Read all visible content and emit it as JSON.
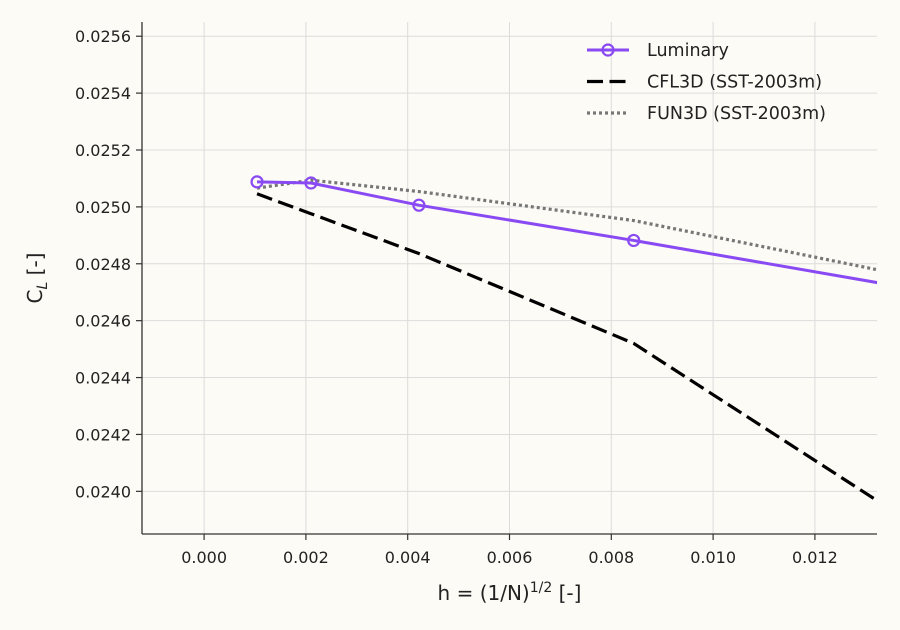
{
  "chart_data": {
    "type": "line",
    "title": "",
    "xlabel": {
      "base": "h = (1/N)",
      "sup": "1/2",
      "unit": " [-]"
    },
    "ylabel": {
      "base": "C",
      "sub": "L",
      "unit": " [-]"
    },
    "xlim": [
      -0.00122,
      0.01322
    ],
    "ylim": [
      0.02385,
      0.02565
    ],
    "xticks": [
      {
        "value": 0.0,
        "label": "0.000"
      },
      {
        "value": 0.002,
        "label": "0.002"
      },
      {
        "value": 0.004,
        "label": "0.004"
      },
      {
        "value": 0.006,
        "label": "0.006"
      },
      {
        "value": 0.008,
        "label": "0.008"
      },
      {
        "value": 0.01,
        "label": "0.010"
      },
      {
        "value": 0.012,
        "label": "0.012"
      }
    ],
    "yticks": [
      {
        "value": 0.024,
        "label": "0.0240"
      },
      {
        "value": 0.0242,
        "label": "0.0242"
      },
      {
        "value": 0.0244,
        "label": "0.0244"
      },
      {
        "value": 0.0246,
        "label": "0.0246"
      },
      {
        "value": 0.0248,
        "label": "0.0248"
      },
      {
        "value": 0.025,
        "label": "0.0250"
      },
      {
        "value": 0.0252,
        "label": "0.0252"
      },
      {
        "value": 0.0254,
        "label": "0.0254"
      },
      {
        "value": 0.0256,
        "label": "0.0256"
      }
    ],
    "grid": true,
    "legend_position": "top-right",
    "series": [
      {
        "name": "Luminary",
        "color": "#8a4af3",
        "style": "solid",
        "marker": "circle-open",
        "points": [
          [
            0.00104,
            0.025088
          ],
          [
            0.0021,
            0.025084
          ],
          [
            0.00422,
            0.025006
          ],
          [
            0.00844,
            0.024882
          ],
          [
            0.0169,
            0.02462
          ]
        ]
      },
      {
        "name": "CFL3D (SST-2003m)",
        "color": "#000000",
        "style": "dashed",
        "marker": "none",
        "points": [
          [
            0.00104,
            0.025046
          ],
          [
            0.0021,
            0.024976
          ],
          [
            0.00422,
            0.024836
          ],
          [
            0.00844,
            0.02452
          ],
          [
            0.0132,
            0.02397
          ]
        ]
      },
      {
        "name": "FUN3D (SST-2003m)",
        "color": "#777777",
        "style": "dotted",
        "marker": "none",
        "points": [
          [
            0.00104,
            0.025066
          ],
          [
            0.0021,
            0.025094
          ],
          [
            0.00422,
            0.025054
          ],
          [
            0.00844,
            0.024952
          ],
          [
            0.0132,
            0.02478
          ]
        ]
      }
    ]
  }
}
